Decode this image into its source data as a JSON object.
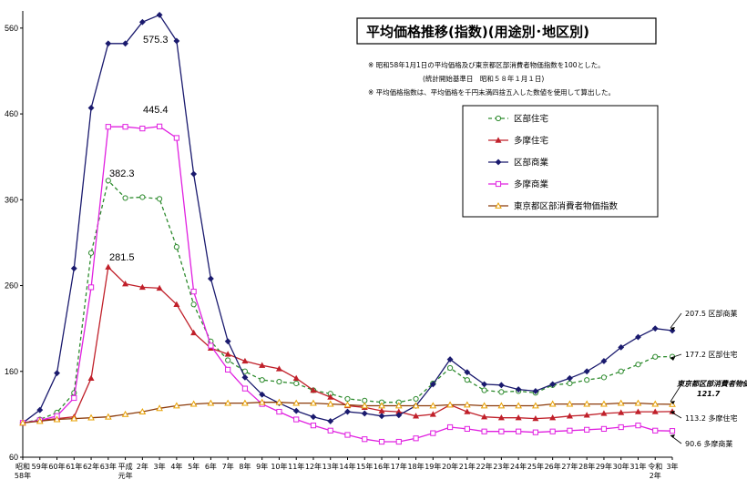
{
  "chart_data": {
    "type": "line",
    "title": "平均価格推移(指数)(用途別･地区別)",
    "notes": [
      "※ 昭和58年1月1日の平均価格及び東京都区部消費者物価指数を100とした。",
      "(統計開始基準日　昭和５８年１月１日)",
      "※ 平均価格指数は、平均価格を千円未満四捨五入した数値を使用して算出した。"
    ],
    "ylim": [
      60,
      580
    ],
    "yticks": [
      "60",
      "160",
      "260",
      "360",
      "460",
      "560"
    ],
    "x_labels": [
      [
        "昭和",
        "58年"
      ],
      [
        "59年"
      ],
      [
        "60年"
      ],
      [
        "61年"
      ],
      [
        "62年"
      ],
      [
        "63年"
      ],
      [
        "平成",
        "元年"
      ],
      [
        "2年"
      ],
      [
        "3年"
      ],
      [
        "4年"
      ],
      [
        "5年"
      ],
      [
        "6年"
      ],
      [
        "7年"
      ],
      [
        "8年"
      ],
      [
        "9年"
      ],
      [
        "10年"
      ],
      [
        "11年"
      ],
      [
        "12年"
      ],
      [
        "13年"
      ],
      [
        "14年"
      ],
      [
        "15年"
      ],
      [
        "16年"
      ],
      [
        "17年"
      ],
      [
        "18年"
      ],
      [
        "19年"
      ],
      [
        "20年"
      ],
      [
        "21年"
      ],
      [
        "22年"
      ],
      [
        "23年"
      ],
      [
        "24年"
      ],
      [
        "25年"
      ],
      [
        "26年"
      ],
      [
        "27年"
      ],
      [
        "28年"
      ],
      [
        "29年"
      ],
      [
        "30年"
      ],
      [
        "31年"
      ],
      [
        "令和",
        "2年"
      ],
      [
        "3年"
      ]
    ],
    "series": [
      {
        "name": "区部住宅",
        "color": "#2e8b2e",
        "dash": "4,3",
        "marker": "circle",
        "values": [
          100,
          104,
          112,
          135,
          298,
          382.3,
          362,
          363,
          361,
          305,
          238,
          195,
          173,
          160,
          150,
          148,
          146,
          138,
          134,
          128,
          126,
          124,
          124,
          128,
          146,
          164,
          150,
          138,
          136,
          137,
          135,
          144,
          146,
          150,
          153,
          160,
          168,
          177,
          177.2
        ]
      },
      {
        "name": "多摩住宅",
        "color": "#c0202a",
        "dash": "",
        "marker": "triangle",
        "values": [
          100,
          103,
          105,
          107,
          152,
          281.5,
          262,
          258,
          257,
          238,
          205,
          187,
          180,
          172,
          167,
          163,
          152,
          138,
          130,
          120,
          118,
          114,
          113,
          108,
          110,
          121,
          113,
          107,
          106,
          106,
          105,
          106,
          108,
          109,
          111,
          112,
          113,
          113,
          113.2
        ]
      },
      {
        "name": "区部商業",
        "color": "#1a1a6e",
        "dash": "",
        "marker": "diamond",
        "values": [
          100,
          115,
          158,
          280,
          467,
          542,
          542,
          567,
          575.3,
          545,
          390,
          268,
          195,
          153,
          133,
          123,
          114,
          107,
          102,
          113,
          111,
          108,
          109,
          120,
          145,
          174,
          159,
          145,
          144,
          139,
          137,
          145,
          152,
          160,
          172,
          188,
          200,
          210,
          207.5
        ]
      },
      {
        "name": "多摩商業",
        "color": "#e020e0",
        "dash": "",
        "marker": "square",
        "values": [
          100,
          103,
          108,
          129,
          258,
          445,
          445,
          443,
          445.4,
          432,
          253,
          190,
          162,
          140,
          122,
          113,
          104,
          97,
          91,
          86,
          81,
          78,
          78,
          82,
          88,
          95,
          93,
          90,
          90,
          90,
          89,
          90,
          91,
          92,
          93,
          95,
          97,
          91,
          90.6
        ]
      },
      {
        "name": "東京都区部消費者物価指数",
        "color": "#8b3a0a",
        "dash": "",
        "marker": "triangle-open",
        "values": [
          100,
          102,
          104,
          105,
          106,
          107,
          110,
          113,
          117,
          120,
          122,
          123,
          123,
          123,
          124,
          124,
          123,
          123,
          122,
          121,
          120,
          120,
          120,
          120,
          120,
          121,
          121,
          120,
          120,
          120,
          120,
          122,
          122,
          122,
          122,
          123,
          123,
          122,
          121.7
        ]
      }
    ],
    "annotations": [
      {
        "text": "575.3",
        "x_index": 8,
        "y": 575.3
      },
      {
        "text": "445.4",
        "x_index": 8,
        "y": 445.4
      },
      {
        "text": "382.3",
        "x_index": 5,
        "y": 382.3
      },
      {
        "text": "281.5",
        "x_index": 5,
        "y": 281.5
      }
    ],
    "end_labels": [
      {
        "value": "207.5",
        "name": "区部商業"
      },
      {
        "value": "177.2",
        "name": "区部住宅"
      },
      {
        "value": "121.7",
        "name": "東京都区部消費者物価指数"
      },
      {
        "value": "113.2",
        "name": "多摩住宅"
      },
      {
        "value": "90.6",
        "name": "多摩商業"
      }
    ],
    "grid": false,
    "legend": "top-right"
  }
}
